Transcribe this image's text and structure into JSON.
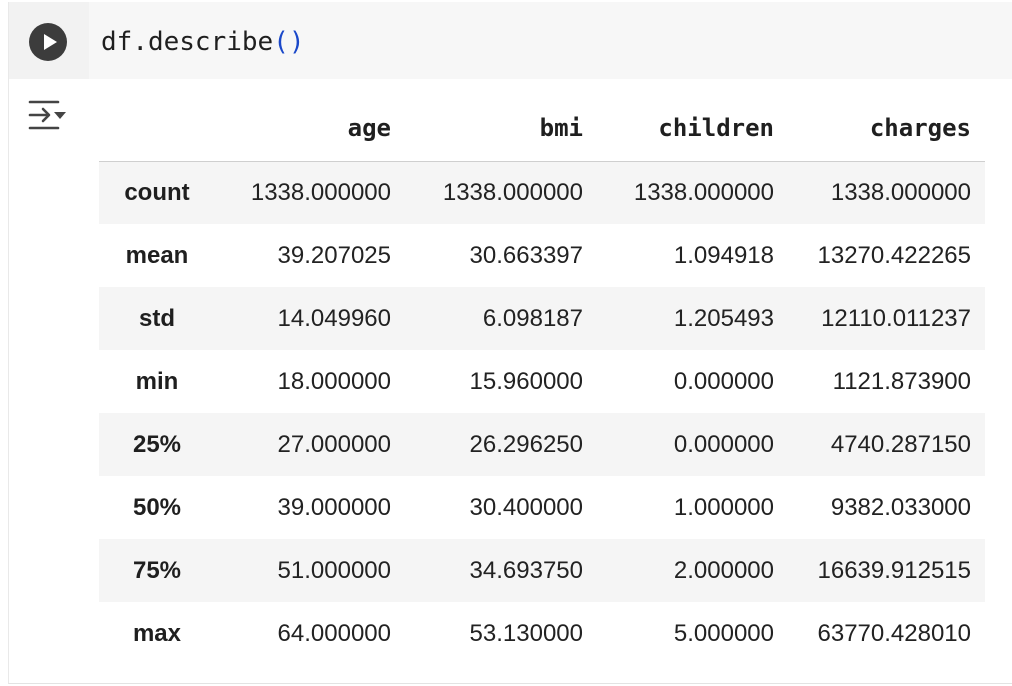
{
  "cell": {
    "code": {
      "object": "df",
      "dot": ".",
      "method": "describe",
      "parens": "()"
    },
    "run_icon": "play-icon",
    "output_toggle_icon": "collapse-output-icon"
  },
  "table": {
    "columns": [
      "age",
      "bmi",
      "children",
      "charges"
    ],
    "rows": [
      {
        "index": "count",
        "values": [
          "1338.000000",
          "1338.000000",
          "1338.000000",
          "1338.000000"
        ]
      },
      {
        "index": "mean",
        "values": [
          "39.207025",
          "30.663397",
          "1.094918",
          "13270.422265"
        ]
      },
      {
        "index": "std",
        "values": [
          "14.049960",
          "6.098187",
          "1.205493",
          "12110.011237"
        ]
      },
      {
        "index": "min",
        "values": [
          "18.000000",
          "15.960000",
          "0.000000",
          "1121.873900"
        ]
      },
      {
        "index": "25%",
        "values": [
          "27.000000",
          "26.296250",
          "0.000000",
          "4740.287150"
        ]
      },
      {
        "index": "50%",
        "values": [
          "39.000000",
          "30.400000",
          "1.000000",
          "9382.033000"
        ]
      },
      {
        "index": "75%",
        "values": [
          "51.000000",
          "34.693750",
          "2.000000",
          "16639.912515"
        ]
      },
      {
        "index": "max",
        "values": [
          "64.000000",
          "53.130000",
          "5.000000",
          "63770.428010"
        ]
      }
    ]
  },
  "colors": {
    "run_button": "#3c3c3c",
    "code_paren": "#1a48c9",
    "stripe": "#f5f5f5"
  }
}
